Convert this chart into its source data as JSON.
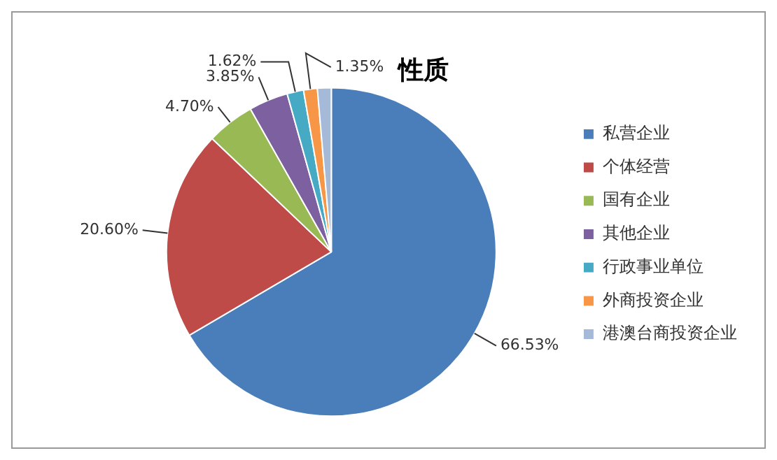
{
  "chart_data": {
    "type": "pie",
    "title": "性质",
    "categories": [
      "私营企业",
      "个体经营",
      "国有企业",
      "其他企业",
      "行政事业单位",
      "外商投资企业",
      "港澳台商投资企业"
    ],
    "values": [
      66.53,
      20.6,
      4.7,
      3.85,
      1.62,
      1.35,
      1.35
    ],
    "value_labels": [
      "66.53%",
      "20.60%",
      "4.70%",
      "3.85%",
      "1.62%",
      "1.35%",
      null
    ],
    "colors": [
      "#4a7ebb",
      "#be4b48",
      "#98b954",
      "#7d60a0",
      "#46aac5",
      "#f79646",
      "#a5b9d9"
    ],
    "legend": "right"
  }
}
